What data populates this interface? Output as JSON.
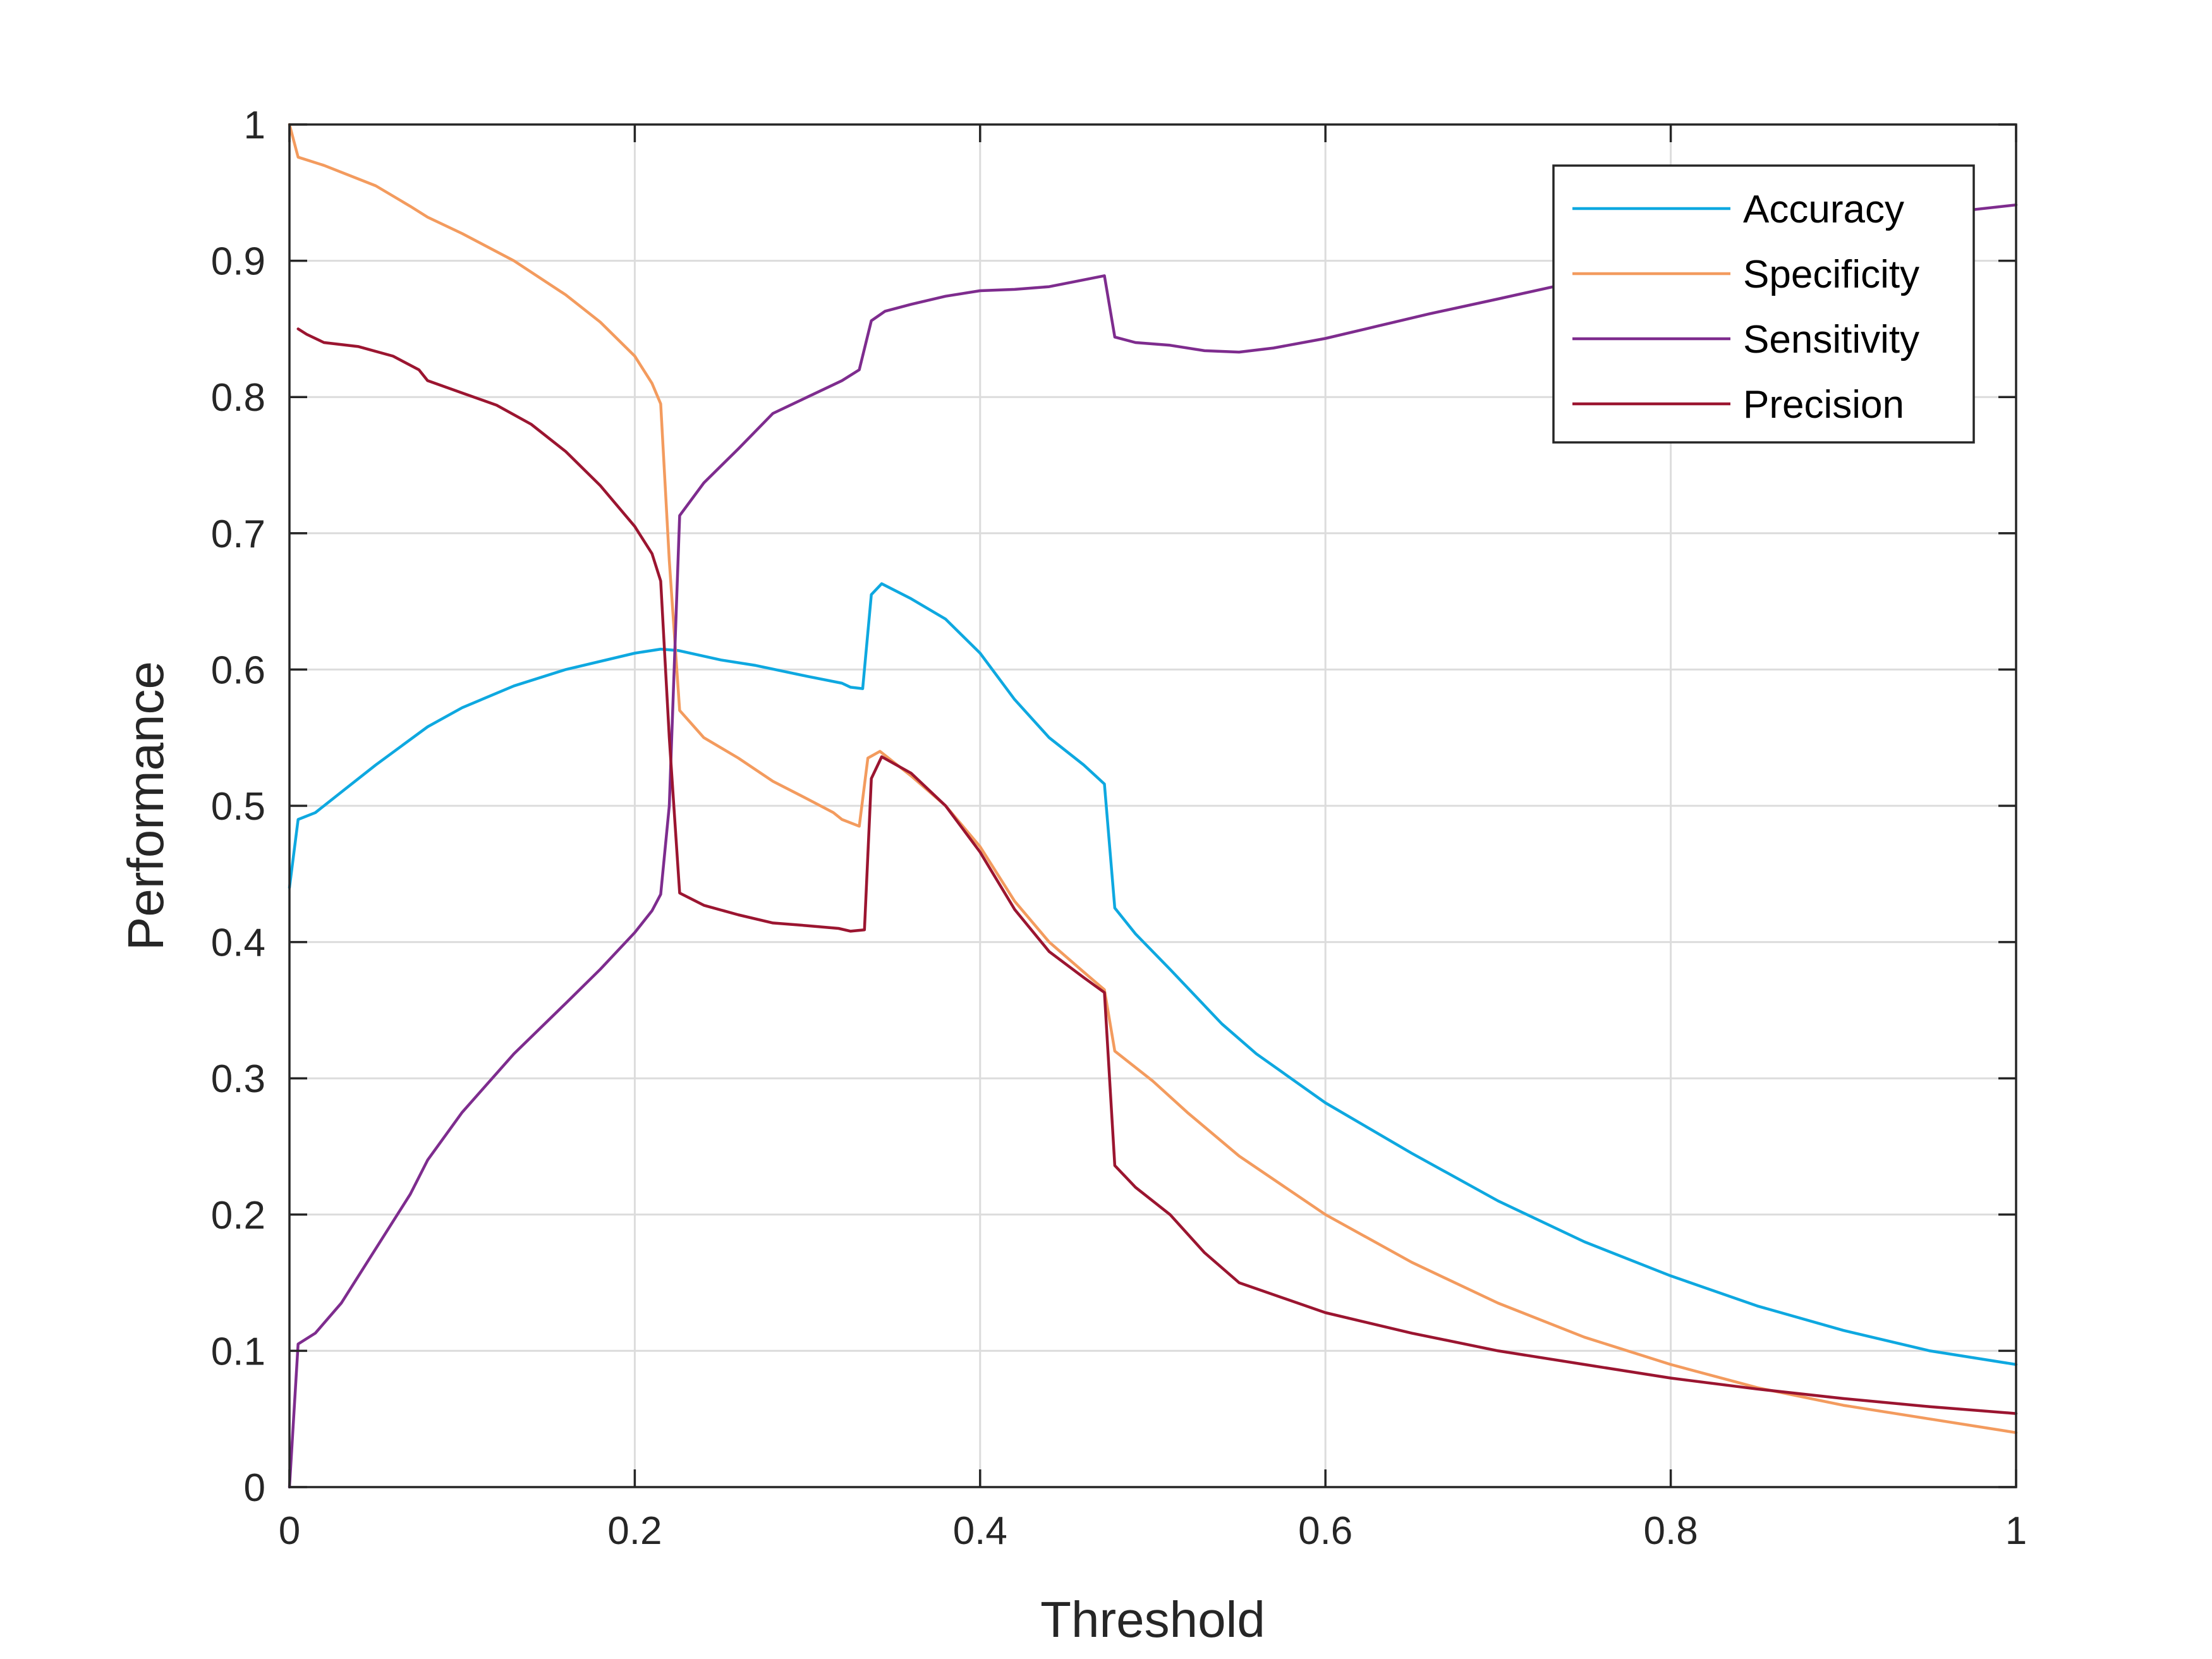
{
  "chart_data": {
    "type": "line",
    "xlabel": "Threshold",
    "ylabel": "Performance",
    "xlim": [
      0,
      1
    ],
    "ylim": [
      0,
      1
    ],
    "xticks": [
      0,
      0.2,
      0.4,
      0.6,
      0.8,
      1
    ],
    "xtick_labels": [
      "0",
      "0.2",
      "0.4",
      "0.6",
      "0.8",
      "1"
    ],
    "yticks": [
      0,
      0.1,
      0.2,
      0.3,
      0.4,
      0.5,
      0.6,
      0.7,
      0.8,
      0.9,
      1
    ],
    "ytick_labels": [
      "0",
      "0.1",
      "0.2",
      "0.3",
      "0.4",
      "0.5",
      "0.6",
      "0.7",
      "0.8",
      "0.9",
      "1"
    ],
    "grid": true,
    "legend": {
      "position": "top-right"
    },
    "series": [
      {
        "name": "Accuracy",
        "color": "#0ea8e0",
        "points": [
          [
            0,
            0.44
          ],
          [
            0.005,
            0.49
          ],
          [
            0.015,
            0.495
          ],
          [
            0.03,
            0.51
          ],
          [
            0.05,
            0.53
          ],
          [
            0.08,
            0.558
          ],
          [
            0.1,
            0.572
          ],
          [
            0.13,
            0.588
          ],
          [
            0.16,
            0.6
          ],
          [
            0.2,
            0.612
          ],
          [
            0.215,
            0.615
          ],
          [
            0.225,
            0.614
          ],
          [
            0.25,
            0.607
          ],
          [
            0.27,
            0.603
          ],
          [
            0.3,
            0.595
          ],
          [
            0.32,
            0.59
          ],
          [
            0.325,
            0.587
          ],
          [
            0.332,
            0.586
          ],
          [
            0.337,
            0.655
          ],
          [
            0.343,
            0.663
          ],
          [
            0.36,
            0.652
          ],
          [
            0.38,
            0.637
          ],
          [
            0.4,
            0.612
          ],
          [
            0.42,
            0.578
          ],
          [
            0.44,
            0.55
          ],
          [
            0.46,
            0.53
          ],
          [
            0.472,
            0.516
          ],
          [
            0.478,
            0.425
          ],
          [
            0.49,
            0.406
          ],
          [
            0.51,
            0.38
          ],
          [
            0.54,
            0.34
          ],
          [
            0.56,
            0.318
          ],
          [
            0.6,
            0.282
          ],
          [
            0.65,
            0.245
          ],
          [
            0.7,
            0.21
          ],
          [
            0.75,
            0.18
          ],
          [
            0.8,
            0.155
          ],
          [
            0.85,
            0.133
          ],
          [
            0.9,
            0.115
          ],
          [
            0.95,
            0.1
          ],
          [
            1,
            0.09
          ]
        ]
      },
      {
        "name": "Specificity",
        "color": "#f39b5e",
        "points": [
          [
            0,
            1
          ],
          [
            0.005,
            0.976
          ],
          [
            0.02,
            0.97
          ],
          [
            0.05,
            0.955
          ],
          [
            0.07,
            0.94
          ],
          [
            0.08,
            0.932
          ],
          [
            0.1,
            0.92
          ],
          [
            0.13,
            0.9
          ],
          [
            0.16,
            0.875
          ],
          [
            0.18,
            0.855
          ],
          [
            0.2,
            0.83
          ],
          [
            0.21,
            0.81
          ],
          [
            0.215,
            0.795
          ],
          [
            0.22,
            0.68
          ],
          [
            0.226,
            0.57
          ],
          [
            0.24,
            0.55
          ],
          [
            0.26,
            0.535
          ],
          [
            0.28,
            0.518
          ],
          [
            0.3,
            0.505
          ],
          [
            0.315,
            0.495
          ],
          [
            0.32,
            0.49
          ],
          [
            0.33,
            0.485
          ],
          [
            0.335,
            0.535
          ],
          [
            0.342,
            0.54
          ],
          [
            0.36,
            0.522
          ],
          [
            0.38,
            0.5
          ],
          [
            0.4,
            0.47
          ],
          [
            0.42,
            0.43
          ],
          [
            0.44,
            0.4
          ],
          [
            0.46,
            0.378
          ],
          [
            0.472,
            0.365
          ],
          [
            0.478,
            0.32
          ],
          [
            0.5,
            0.298
          ],
          [
            0.52,
            0.275
          ],
          [
            0.55,
            0.243
          ],
          [
            0.6,
            0.2
          ],
          [
            0.65,
            0.165
          ],
          [
            0.7,
            0.135
          ],
          [
            0.75,
            0.11
          ],
          [
            0.8,
            0.09
          ],
          [
            0.85,
            0.073
          ],
          [
            0.9,
            0.06
          ],
          [
            0.95,
            0.05
          ],
          [
            1,
            0.04
          ]
        ]
      },
      {
        "name": "Sensitivity",
        "color": "#7e2c8e",
        "points": [
          [
            0,
            0
          ],
          [
            0.005,
            0.105
          ],
          [
            0.015,
            0.113
          ],
          [
            0.03,
            0.135
          ],
          [
            0.05,
            0.175
          ],
          [
            0.07,
            0.215
          ],
          [
            0.08,
            0.24
          ],
          [
            0.1,
            0.275
          ],
          [
            0.13,
            0.318
          ],
          [
            0.16,
            0.355
          ],
          [
            0.18,
            0.38
          ],
          [
            0.2,
            0.407
          ],
          [
            0.21,
            0.423
          ],
          [
            0.215,
            0.435
          ],
          [
            0.22,
            0.5
          ],
          [
            0.226,
            0.713
          ],
          [
            0.24,
            0.737
          ],
          [
            0.26,
            0.762
          ],
          [
            0.28,
            0.788
          ],
          [
            0.3,
            0.8
          ],
          [
            0.32,
            0.812
          ],
          [
            0.33,
            0.82
          ],
          [
            0.337,
            0.856
          ],
          [
            0.345,
            0.863
          ],
          [
            0.36,
            0.868
          ],
          [
            0.38,
            0.874
          ],
          [
            0.4,
            0.878
          ],
          [
            0.42,
            0.879
          ],
          [
            0.44,
            0.881
          ],
          [
            0.46,
            0.886
          ],
          [
            0.472,
            0.889
          ],
          [
            0.478,
            0.844
          ],
          [
            0.49,
            0.84
          ],
          [
            0.51,
            0.838
          ],
          [
            0.53,
            0.834
          ],
          [
            0.55,
            0.833
          ],
          [
            0.57,
            0.836
          ],
          [
            0.6,
            0.843
          ],
          [
            0.63,
            0.852
          ],
          [
            0.66,
            0.861
          ],
          [
            0.7,
            0.872
          ],
          [
            0.75,
            0.886
          ],
          [
            0.8,
            0.9
          ],
          [
            0.85,
            0.913
          ],
          [
            0.9,
            0.925
          ],
          [
            0.95,
            0.934
          ],
          [
            1,
            0.941
          ]
        ]
      },
      {
        "name": "Precision",
        "color": "#9b1530",
        "points": [
          [
            0.005,
            0.85
          ],
          [
            0.01,
            0.846
          ],
          [
            0.02,
            0.84
          ],
          [
            0.04,
            0.837
          ],
          [
            0.06,
            0.83
          ],
          [
            0.075,
            0.82
          ],
          [
            0.08,
            0.812
          ],
          [
            0.1,
            0.803
          ],
          [
            0.12,
            0.794
          ],
          [
            0.14,
            0.78
          ],
          [
            0.16,
            0.76
          ],
          [
            0.18,
            0.735
          ],
          [
            0.2,
            0.705
          ],
          [
            0.21,
            0.685
          ],
          [
            0.215,
            0.665
          ],
          [
            0.22,
            0.55
          ],
          [
            0.226,
            0.436
          ],
          [
            0.24,
            0.427
          ],
          [
            0.26,
            0.42
          ],
          [
            0.28,
            0.414
          ],
          [
            0.3,
            0.412
          ],
          [
            0.318,
            0.41
          ],
          [
            0.325,
            0.408
          ],
          [
            0.333,
            0.409
          ],
          [
            0.337,
            0.52
          ],
          [
            0.343,
            0.536
          ],
          [
            0.36,
            0.524
          ],
          [
            0.38,
            0.5
          ],
          [
            0.4,
            0.466
          ],
          [
            0.42,
            0.424
          ],
          [
            0.44,
            0.393
          ],
          [
            0.46,
            0.374
          ],
          [
            0.472,
            0.363
          ],
          [
            0.478,
            0.236
          ],
          [
            0.49,
            0.22
          ],
          [
            0.51,
            0.2
          ],
          [
            0.53,
            0.172
          ],
          [
            0.55,
            0.15
          ],
          [
            0.6,
            0.128
          ],
          [
            0.65,
            0.113
          ],
          [
            0.7,
            0.1
          ],
          [
            0.75,
            0.09
          ],
          [
            0.8,
            0.08
          ],
          [
            0.85,
            0.072
          ],
          [
            0.9,
            0.065
          ],
          [
            0.95,
            0.059
          ],
          [
            1,
            0.054
          ]
        ]
      }
    ]
  }
}
